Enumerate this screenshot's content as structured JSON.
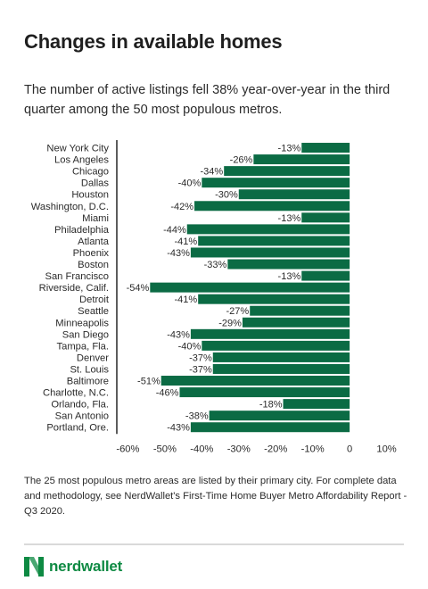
{
  "title": "Changes in available homes",
  "subtitle": "The number of active listings fell 38% year-over-year in the third quarter among the 50 most populous metros.",
  "footnote": "The 25 most populous metro areas are listed by their primary city. For complete data and methodology, see NerdWallet's First-Time Home Buyer Metro Affordability Report - Q3 2020.",
  "brand": {
    "name": "nerdwallet",
    "color": "#0e8a43"
  },
  "colors": {
    "bar": "#0b6b44",
    "axis": "#333333",
    "text": "#2b2b2b"
  },
  "chart_data": {
    "type": "bar",
    "orientation": "horizontal",
    "categories": [
      "New York City",
      "Los Angeles",
      "Chicago",
      "Dallas",
      "Houston",
      "Washington, D.C.",
      "Miami",
      "Philadelphia",
      "Atlanta",
      "Phoenix",
      "Boston",
      "San Francisco",
      "Riverside, Calif.",
      "Detroit",
      "Seattle",
      "Minneapolis",
      "San Diego",
      "Tampa, Fla.",
      "Denver",
      "St. Louis",
      "Baltimore",
      "Charlotte, N.C.",
      "Orlando, Fla.",
      "San Antonio",
      "Portland, Ore."
    ],
    "values": [
      -13,
      -26,
      -34,
      -40,
      -30,
      -42,
      -13,
      -44,
      -41,
      -43,
      -33,
      -13,
      -54,
      -41,
      -27,
      -29,
      -43,
      -40,
      -37,
      -37,
      -51,
      -46,
      -18,
      -38,
      -43
    ],
    "data_labels": [
      "-13%",
      "-26%",
      "-34%",
      "-40%",
      "-30%",
      "-42%",
      "-13%",
      "-44%",
      "-41%",
      "-43%",
      "-33%",
      "-13%",
      "-54%",
      "-41%",
      "-27%",
      "-29%",
      "-43%",
      "-40%",
      "-37%",
      "-37%",
      "-51%",
      "-46%",
      "-18%",
      "-38%",
      "-43%"
    ],
    "xlim": [
      -63,
      13
    ],
    "x_ticks": [
      -60,
      -50,
      -40,
      -30,
      -20,
      -10,
      0,
      10
    ],
    "x_tick_labels": [
      "-60%",
      "-50%",
      "-40%",
      "-30%",
      "-20%",
      "-10%",
      "0",
      "10%"
    ],
    "grid": false
  }
}
